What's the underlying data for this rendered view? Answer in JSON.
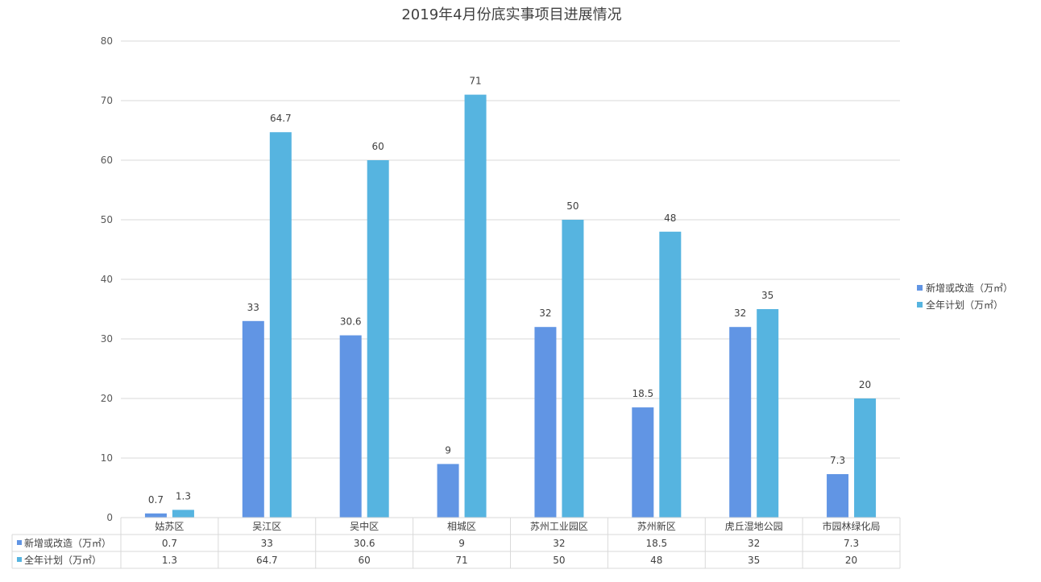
{
  "chart_data": {
    "type": "bar",
    "title": "2019年4月份底实事项目进展情况",
    "categories": [
      "姑苏区",
      "吴江区",
      "吴中区",
      "相城区",
      "苏州工业园区",
      "苏州新区",
      "虎丘湿地公园",
      "市园林绿化局"
    ],
    "series": [
      {
        "name": "新增或改造（万㎡）",
        "color": "#6195E4",
        "values": [
          0.7,
          33,
          30.6,
          9,
          32,
          18.5,
          32,
          7.3
        ]
      },
      {
        "name": "全年计划（万㎡）",
        "color": "#56B4E0",
        "values": [
          1.3,
          64.7,
          60,
          71,
          50,
          48,
          35,
          20
        ]
      }
    ],
    "ylim": [
      0,
      80
    ],
    "yticks": [
      0,
      10,
      20,
      30,
      40,
      50,
      60,
      70,
      80
    ],
    "grid": true,
    "legend_position": "right",
    "data_table": true
  }
}
